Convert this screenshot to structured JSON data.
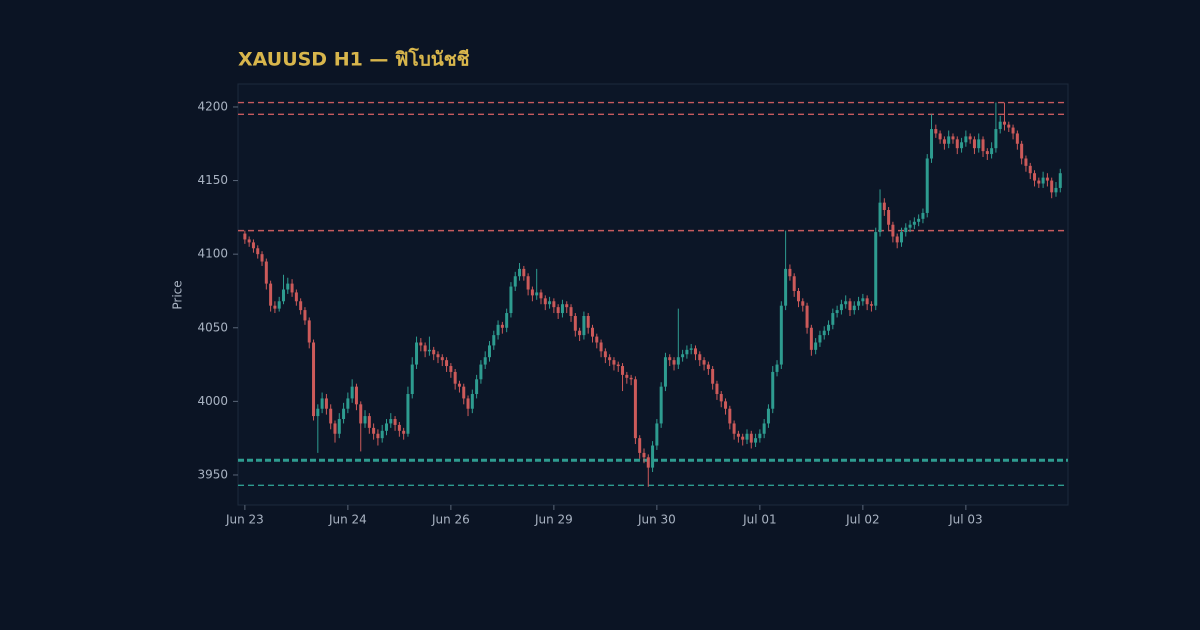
{
  "chart_data": {
    "type": "candlestick",
    "title": "XAUUSD H1 — ฟิโบนัชชี",
    "y_label": "Price",
    "up_color": "#2e9c90",
    "down_color": "#cc5a5a",
    "ylim": [
      3929.6,
      4215.6
    ],
    "yticks": [
      3950,
      4000,
      4050,
      4100,
      4150,
      4200
    ],
    "xlim": [
      -1.6,
      191.8
    ],
    "xticks": [
      {
        "value": 0,
        "label": "Jun 23"
      },
      {
        "value": 24,
        "label": "Jun 24"
      },
      {
        "value": 48,
        "label": "Jun 26"
      },
      {
        "value": 72,
        "label": "Jun 29"
      },
      {
        "value": 96,
        "label": "Jun 30"
      },
      {
        "value": 120,
        "label": "Jul 01"
      },
      {
        "value": 144,
        "label": "Jul 02"
      },
      {
        "value": 168,
        "label": "Jul 03"
      }
    ],
    "levels": [
      {
        "value": 4203,
        "color": "#c65a5e"
      },
      {
        "value": 4195,
        "color": "#c65a5e"
      },
      {
        "value": 4116,
        "color": "#c65a5e"
      },
      {
        "value": 3960,
        "color": "#2e9c90",
        "emphasis": true
      },
      {
        "value": 3943,
        "color": "#2e9c90"
      }
    ],
    "candles": [
      [
        4114,
        4116,
        4107,
        4110
      ],
      [
        4110,
        4112,
        4105,
        4108
      ],
      [
        4108,
        4110,
        4101,
        4104
      ],
      [
        4104,
        4106,
        4097,
        4100
      ],
      [
        4100,
        4102,
        4092,
        4095
      ],
      [
        4095,
        4097,
        4076,
        4080
      ],
      [
        4080,
        4082,
        4061,
        4065
      ],
      [
        4065,
        4068,
        4060,
        4063
      ],
      [
        4063,
        4071,
        4061,
        4068
      ],
      [
        4068,
        4086,
        4066,
        4076
      ],
      [
        4076,
        4084,
        4073,
        4080
      ],
      [
        4080,
        4083,
        4071,
        4074
      ],
      [
        4074,
        4076,
        4065,
        4068
      ],
      [
        4068,
        4070,
        4059,
        4062
      ],
      [
        4062,
        4064,
        4052,
        4055
      ],
      [
        4055,
        4057,
        4036,
        4040
      ],
      [
        4040,
        4042,
        3987,
        3990
      ],
      [
        3990,
        3998,
        3965,
        3995
      ],
      [
        3995,
        4006,
        3992,
        4002
      ],
      [
        4002,
        4005,
        3991,
        3995
      ],
      [
        3995,
        3998,
        3981,
        3985
      ],
      [
        3985,
        3987,
        3972,
        3978
      ],
      [
        3978,
        3992,
        3975,
        3988
      ],
      [
        3988,
        3999,
        3985,
        3995
      ],
      [
        3995,
        4006,
        3992,
        4002
      ],
      [
        4002,
        4015,
        3999,
        4010
      ],
      [
        4010,
        4012,
        3994,
        3998
      ],
      [
        3998,
        4000,
        3966,
        3985
      ],
      [
        3985,
        3994,
        3982,
        3990
      ],
      [
        3990,
        3992,
        3978,
        3982
      ],
      [
        3982,
        3985,
        3974,
        3978
      ],
      [
        3978,
        3981,
        3970,
        3975
      ],
      [
        3975,
        3984,
        3972,
        3980
      ],
      [
        3980,
        3988,
        3977,
        3985
      ],
      [
        3985,
        3992,
        3982,
        3988
      ],
      [
        3988,
        3990,
        3980,
        3984
      ],
      [
        3984,
        3986,
        3976,
        3980
      ],
      [
        3980,
        3982,
        3974,
        3978
      ],
      [
        3978,
        4010,
        3976,
        4005
      ],
      [
        4005,
        4030,
        4002,
        4025
      ],
      [
        4025,
        4044,
        4022,
        4040
      ],
      [
        4040,
        4043,
        4034,
        4038
      ],
      [
        4038,
        4040,
        4030,
        4034
      ],
      [
        4034,
        4044,
        4031,
        4035
      ],
      [
        4035,
        4037,
        4028,
        4032
      ],
      [
        4032,
        4034,
        4026,
        4030
      ],
      [
        4030,
        4032,
        4024,
        4028
      ],
      [
        4028,
        4030,
        4020,
        4024
      ],
      [
        4024,
        4026,
        4016,
        4020
      ],
      [
        4020,
        4022,
        4008,
        4012
      ],
      [
        4012,
        4014,
        4006,
        4010
      ],
      [
        4010,
        4012,
        3998,
        4002
      ],
      [
        4002,
        4004,
        3990,
        3995
      ],
      [
        3995,
        4008,
        3992,
        4005
      ],
      [
        4005,
        4018,
        4002,
        4015
      ],
      [
        4015,
        4028,
        4012,
        4025
      ],
      [
        4025,
        4034,
        4022,
        4030
      ],
      [
        4030,
        4041,
        4027,
        4038
      ],
      [
        4038,
        4048,
        4035,
        4045
      ],
      [
        4045,
        4055,
        4042,
        4052
      ],
      [
        4052,
        4054,
        4046,
        4050
      ],
      [
        4050,
        4063,
        4047,
        4060
      ],
      [
        4060,
        4081,
        4057,
        4078
      ],
      [
        4078,
        4088,
        4075,
        4085
      ],
      [
        4085,
        4094,
        4082,
        4090
      ],
      [
        4090,
        4092,
        4082,
        4085
      ],
      [
        4085,
        4087,
        4072,
        4076
      ],
      [
        4076,
        4078,
        4068,
        4072
      ],
      [
        4072,
        4090,
        4069,
        4074
      ],
      [
        4074,
        4076,
        4066,
        4070
      ],
      [
        4070,
        4072,
        4062,
        4066
      ],
      [
        4066,
        4071,
        4063,
        4068
      ],
      [
        4068,
        4070,
        4060,
        4064
      ],
      [
        4064,
        4066,
        4056,
        4060
      ],
      [
        4060,
        4069,
        4057,
        4066
      ],
      [
        4066,
        4068,
        4060,
        4064
      ],
      [
        4064,
        4066,
        4054,
        4058
      ],
      [
        4058,
        4060,
        4044,
        4048
      ],
      [
        4048,
        4050,
        4041,
        4045
      ],
      [
        4045,
        4061,
        4042,
        4058
      ],
      [
        4058,
        4060,
        4046,
        4050
      ],
      [
        4050,
        4052,
        4040,
        4044
      ],
      [
        4044,
        4046,
        4036,
        4040
      ],
      [
        4040,
        4042,
        4030,
        4034
      ],
      [
        4034,
        4036,
        4026,
        4030
      ],
      [
        4030,
        4032,
        4024,
        4028
      ],
      [
        4028,
        4030,
        4021,
        4025
      ],
      [
        4025,
        4027,
        4020,
        4024
      ],
      [
        4024,
        4026,
        4007,
        4018
      ],
      [
        4018,
        4020,
        4012,
        4016
      ],
      [
        4016,
        4018,
        4011,
        4015
      ],
      [
        4015,
        4017,
        3971,
        3975
      ],
      [
        3975,
        3977,
        3961,
        3965
      ],
      [
        3965,
        3968,
        3958,
        3962
      ],
      [
        3962,
        3964,
        3942,
        3955
      ],
      [
        3955,
        3973,
        3952,
        3970
      ],
      [
        3970,
        3988,
        3967,
        3985
      ],
      [
        3985,
        4013,
        3982,
        4010
      ],
      [
        4010,
        4033,
        4007,
        4030
      ],
      [
        4030,
        4032,
        4024,
        4028
      ],
      [
        4028,
        4030,
        4021,
        4025
      ],
      [
        4025,
        4063,
        4022,
        4030
      ],
      [
        4030,
        4035,
        4027,
        4032
      ],
      [
        4032,
        4038,
        4029,
        4035
      ],
      [
        4035,
        4039,
        4032,
        4036
      ],
      [
        4036,
        4038,
        4028,
        4032
      ],
      [
        4032,
        4034,
        4024,
        4028
      ],
      [
        4028,
        4030,
        4021,
        4025
      ],
      [
        4025,
        4027,
        4018,
        4022
      ],
      [
        4022,
        4024,
        4008,
        4012
      ],
      [
        4012,
        4014,
        4001,
        4005
      ],
      [
        4005,
        4007,
        3996,
        4000
      ],
      [
        4000,
        4002,
        3991,
        3995
      ],
      [
        3995,
        3997,
        3981,
        3985
      ],
      [
        3985,
        3987,
        3974,
        3978
      ],
      [
        3978,
        3980,
        3972,
        3976
      ],
      [
        3976,
        3978,
        3970,
        3974
      ],
      [
        3974,
        3981,
        3971,
        3978
      ],
      [
        3978,
        3980,
        3968,
        3972
      ],
      [
        3972,
        3978,
        3969,
        3975
      ],
      [
        3975,
        3981,
        3972,
        3978
      ],
      [
        3978,
        3988,
        3975,
        3985
      ],
      [
        3985,
        3998,
        3982,
        3995
      ],
      [
        3995,
        4024,
        3992,
        4020
      ],
      [
        4020,
        4028,
        4017,
        4025
      ],
      [
        4025,
        4068,
        4022,
        4065
      ],
      [
        4065,
        4116,
        4062,
        4090
      ],
      [
        4090,
        4093,
        4082,
        4085
      ],
      [
        4085,
        4087,
        4071,
        4075
      ],
      [
        4075,
        4077,
        4064,
        4068
      ],
      [
        4068,
        4070,
        4061,
        4065
      ],
      [
        4065,
        4067,
        4046,
        4050
      ],
      [
        4050,
        4052,
        4031,
        4035
      ],
      [
        4035,
        4043,
        4032,
        4040
      ],
      [
        4040,
        4048,
        4037,
        4045
      ],
      [
        4045,
        4051,
        4042,
        4048
      ],
      [
        4048,
        4055,
        4045,
        4052
      ],
      [
        4052,
        4063,
        4049,
        4060
      ],
      [
        4060,
        4065,
        4057,
        4062
      ],
      [
        4062,
        4069,
        4059,
        4066
      ],
      [
        4066,
        4072,
        4063,
        4068
      ],
      [
        4068,
        4070,
        4058,
        4062
      ],
      [
        4062,
        4068,
        4059,
        4065
      ],
      [
        4065,
        4071,
        4062,
        4068
      ],
      [
        4068,
        4073,
        4065,
        4070
      ],
      [
        4070,
        4072,
        4062,
        4066
      ],
      [
        4066,
        4068,
        4061,
        4065
      ],
      [
        4065,
        4118,
        4062,
        4115
      ],
      [
        4115,
        4144,
        4112,
        4135
      ],
      [
        4135,
        4138,
        4126,
        4130
      ],
      [
        4130,
        4132,
        4116,
        4120
      ],
      [
        4120,
        4122,
        4108,
        4112
      ],
      [
        4112,
        4114,
        4104,
        4108
      ],
      [
        4108,
        4118,
        4105,
        4115
      ],
      [
        4115,
        4121,
        4112,
        4118
      ],
      [
        4118,
        4123,
        4115,
        4120
      ],
      [
        4120,
        4125,
        4117,
        4122
      ],
      [
        4122,
        4127,
        4119,
        4124
      ],
      [
        4124,
        4131,
        4121,
        4128
      ],
      [
        4128,
        4168,
        4125,
        4165
      ],
      [
        4165,
        4195,
        4162,
        4185
      ],
      [
        4185,
        4188,
        4179,
        4182
      ],
      [
        4182,
        4184,
        4175,
        4178
      ],
      [
        4178,
        4180,
        4171,
        4175
      ],
      [
        4175,
        4184,
        4172,
        4180
      ],
      [
        4180,
        4182,
        4175,
        4178
      ],
      [
        4178,
        4180,
        4168,
        4172
      ],
      [
        4172,
        4179,
        4169,
        4176
      ],
      [
        4176,
        4184,
        4173,
        4180
      ],
      [
        4180,
        4182,
        4175,
        4178
      ],
      [
        4178,
        4180,
        4168,
        4172
      ],
      [
        4172,
        4182,
        4169,
        4178
      ],
      [
        4178,
        4180,
        4166,
        4170
      ],
      [
        4170,
        4172,
        4164,
        4168
      ],
      [
        4168,
        4176,
        4165,
        4172
      ],
      [
        4172,
        4203,
        4169,
        4185
      ],
      [
        4185,
        4194,
        4182,
        4190
      ],
      [
        4190,
        4203,
        4184,
        4188
      ],
      [
        4188,
        4190,
        4183,
        4186
      ],
      [
        4186,
        4188,
        4178,
        4182
      ],
      [
        4182,
        4184,
        4171,
        4175
      ],
      [
        4175,
        4177,
        4161,
        4165
      ],
      [
        4165,
        4167,
        4156,
        4160
      ],
      [
        4160,
        4162,
        4151,
        4155
      ],
      [
        4155,
        4157,
        4146,
        4150
      ],
      [
        4150,
        4152,
        4145,
        4148
      ],
      [
        4148,
        4156,
        4145,
        4152
      ],
      [
        4152,
        4155,
        4146,
        4150
      ],
      [
        4150,
        4152,
        4138,
        4142
      ],
      [
        4142,
        4149,
        4139,
        4145
      ],
      [
        4145,
        4158,
        4142,
        4155
      ]
    ]
  }
}
